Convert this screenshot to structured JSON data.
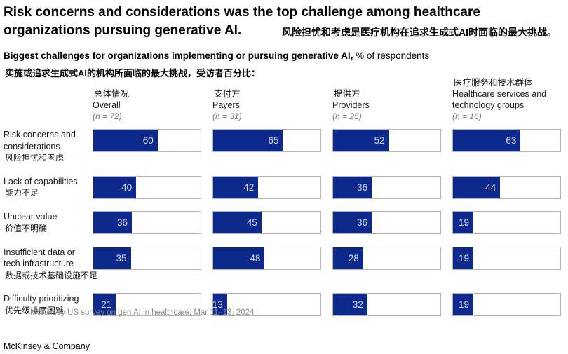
{
  "title": {
    "en": "Risk concerns and considerations was the top challenge among healthcare organizations pursuing generative AI.",
    "zh": "风险担忧和考虑是医疗机构在追求生成式AI时面临的最大挑战。"
  },
  "subtitle": {
    "bold": "Biggest challenges for organizations implementing or pursuing generative AI,",
    "regular": " % of respondents",
    "zh": "实施或追求生成式AI的机构所面临的最大挑战，受访者百分比："
  },
  "columns": [
    {
      "zh": "总体情况",
      "en": "Overall",
      "n_label": "(n = 72)"
    },
    {
      "zh": "支付方",
      "en": "Payers",
      "n_label": "(n = 31)"
    },
    {
      "zh": "提供方",
      "en": "Providers",
      "n_label": "(n = 25)"
    },
    {
      "zh": "医疗服务和技术群体",
      "en": "Healthcare services and\ntechnology groups",
      "n_label": "(n = 16)"
    }
  ],
  "rows": [
    {
      "en": "Risk concerns and\nconsiderations",
      "zh": "风险担忧和考虑"
    },
    {
      "en": "Lack of capabilities",
      "zh": "能力不足"
    },
    {
      "en": "Unclear value",
      "zh": "价值不明确"
    },
    {
      "en": "Insufficient data or\ntech infrastructure",
      "zh": "数据或技术基础设施不足"
    },
    {
      "en": "Difficulty prioritizing",
      "zh": "优先级排序困难"
    }
  ],
  "chart_data": {
    "type": "bar",
    "orientation": "horizontal",
    "title": "Biggest challenges for organizations implementing or pursuing generative AI, % of respondents",
    "unit": "% of respondents",
    "xlim": [
      0,
      100
    ],
    "grid": false,
    "categories": [
      "Risk concerns and considerations",
      "Lack of capabilities",
      "Unclear value",
      "Insufficient data or tech infrastructure",
      "Difficulty prioritizing"
    ],
    "categories_zh": [
      "风险担忧和考虑",
      "能力不足",
      "价值不明确",
      "数据或技术基础设施不足",
      "优先级排序困难"
    ],
    "series": [
      {
        "name": "Overall",
        "name_zh": "总体情况",
        "n": 72,
        "values": [
          60,
          40,
          36,
          35,
          21
        ]
      },
      {
        "name": "Payers",
        "name_zh": "支付方",
        "n": 31,
        "values": [
          65,
          42,
          45,
          48,
          13
        ]
      },
      {
        "name": "Providers",
        "name_zh": "提供方",
        "n": 25,
        "values": [
          52,
          36,
          36,
          28,
          32
        ]
      },
      {
        "name": "Healthcare services and technology groups",
        "name_zh": "医疗服务和技术群体",
        "n": 16,
        "values": [
          63,
          44,
          19,
          19,
          19
        ]
      }
    ]
  },
  "footnote": "McKinsey US survey on gen AI in healthcare, Mar 11–13, 2024",
  "wordmark": "McKinsey & Company",
  "colors": {
    "bar_fill": "#0e298c",
    "bar_border": "#b5b5b5",
    "value_label": "#d6dbe8"
  }
}
